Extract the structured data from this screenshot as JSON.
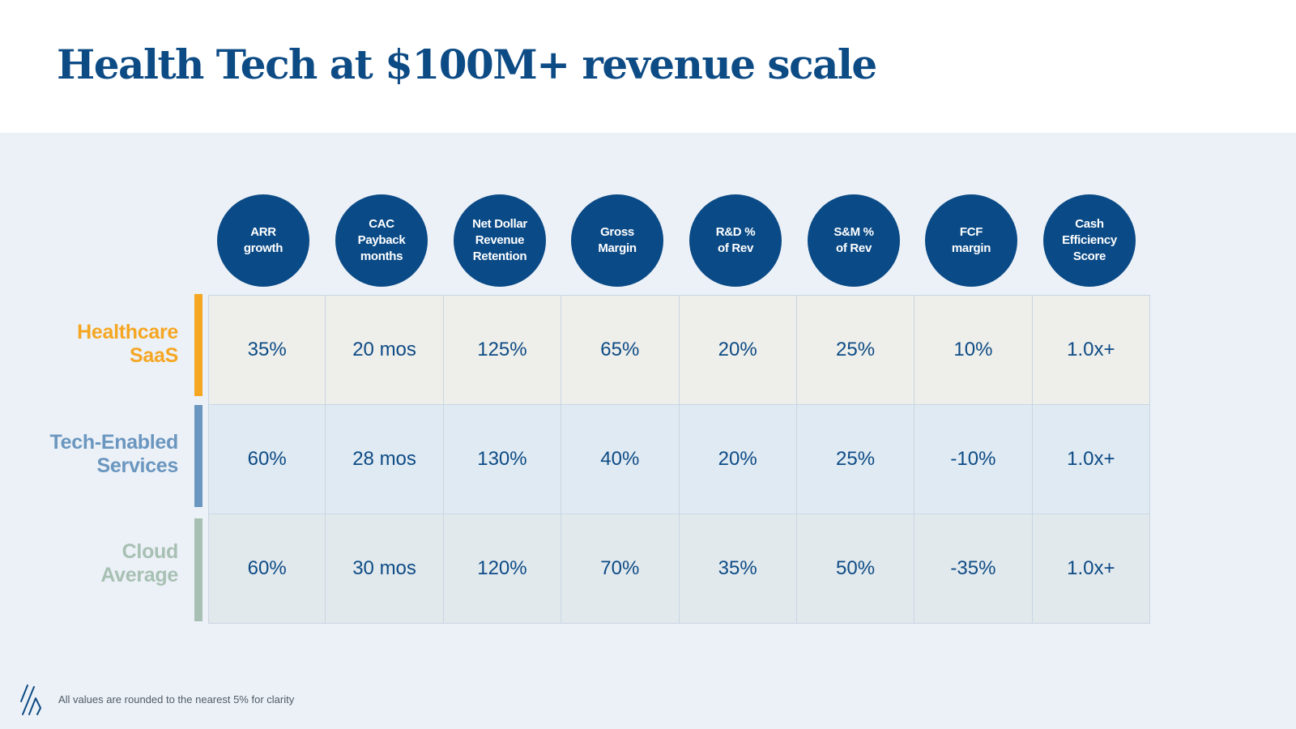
{
  "title": "Health Tech at $100M+ revenue scale",
  "metrics": [
    "ARR\ngrowth",
    "CAC\nPayback\nmonths",
    "Net Dollar\nRevenue\nRetention",
    "Gross\nMargin",
    "R&D %\nof Rev",
    "S&M %\nof Rev",
    "FCF\nmargin",
    "Cash\nEfficiency\nScore"
  ],
  "rows": [
    {
      "label": "Healthcare\nSaaS",
      "color": "#f5a623",
      "values": [
        "35%",
        "20 mos",
        "125%",
        "65%",
        "20%",
        "25%",
        "10%",
        "1.0x+"
      ]
    },
    {
      "label": "Tech-Enabled\nServices",
      "color": "#6a96bf",
      "values": [
        "60%",
        "28 mos",
        "130%",
        "40%",
        "20%",
        "25%",
        "-10%",
        "1.0x+"
      ]
    },
    {
      "label": "Cloud\nAverage",
      "color": "#a7c0b3",
      "values": [
        "60%",
        "30 mos",
        "120%",
        "70%",
        "35%",
        "50%",
        "-35%",
        "1.0x+"
      ]
    }
  ],
  "footnote": "All values are rounded to the nearest 5% for clarity",
  "colors": {
    "primary": "#0d4b85",
    "background": "#ecf1f7"
  },
  "logo_icon": "slashes-logo-icon"
}
